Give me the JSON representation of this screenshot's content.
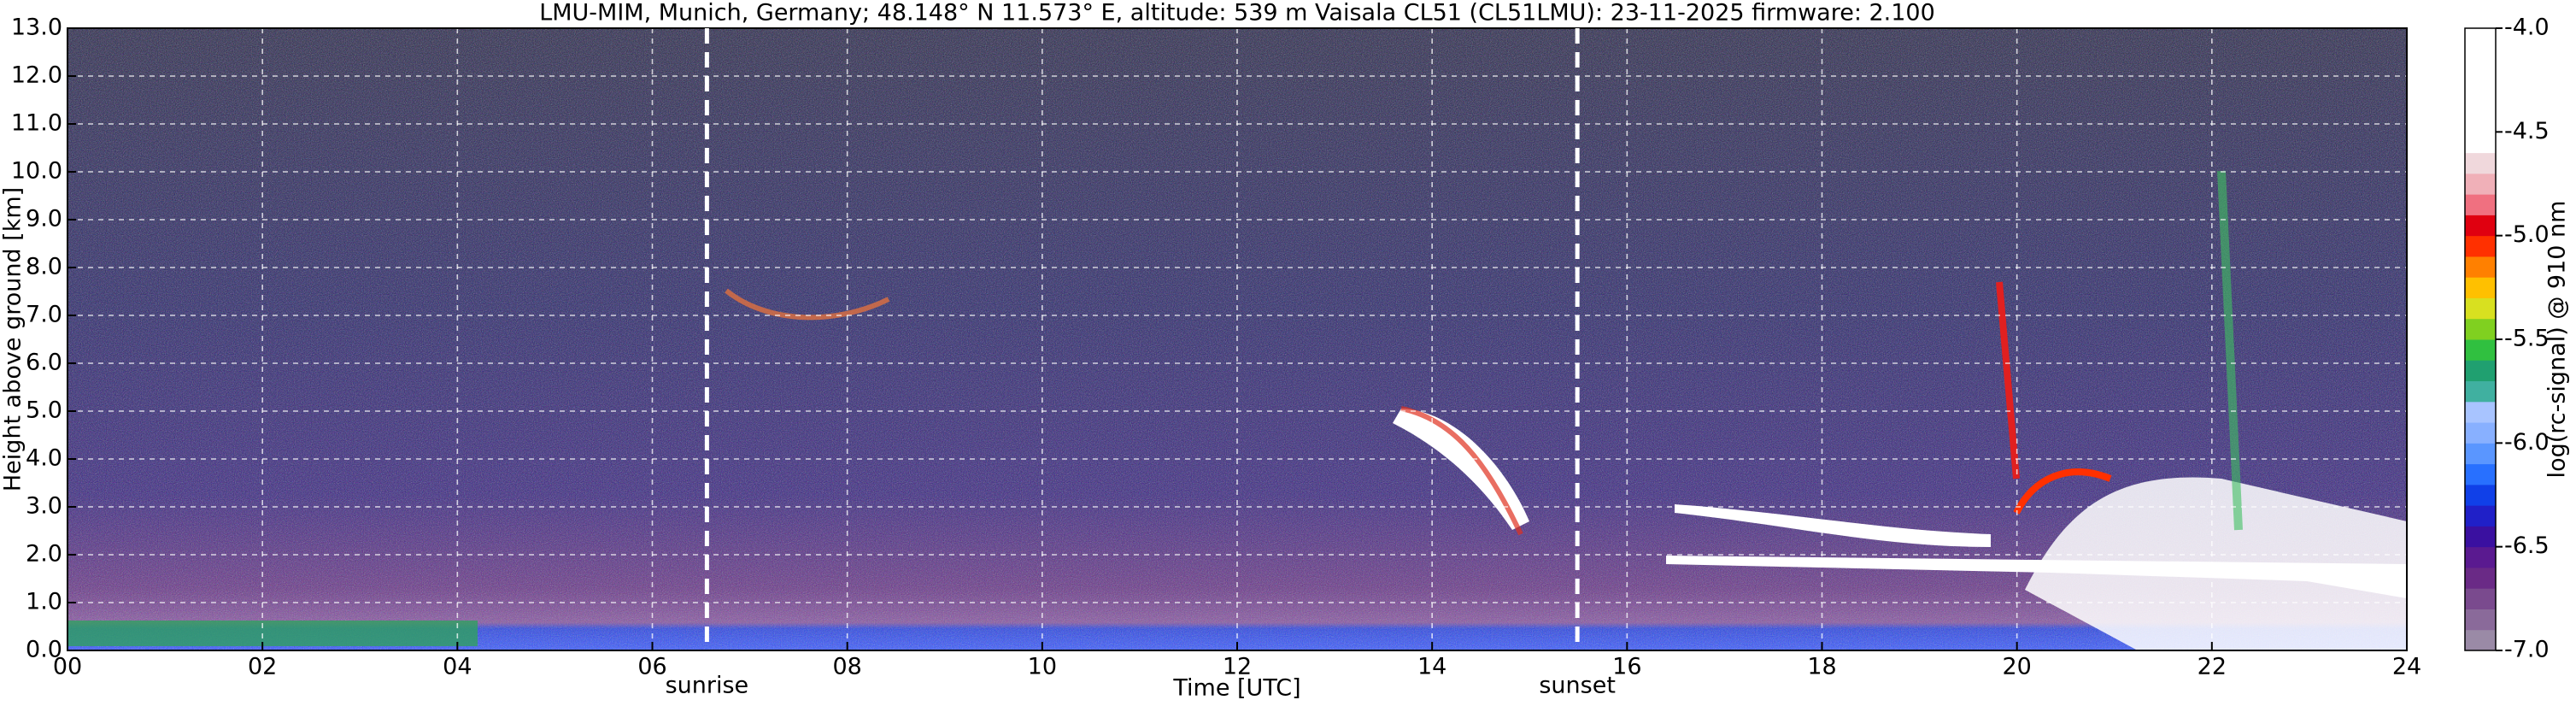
{
  "chart_data": {
    "type": "heatmap",
    "title": "LMU-MIM, Munich, Germany; 48.148° N 11.573° E, altitude: 539 m    Vaisala CL51 (CL51LMU): 23-11-2025    firmware: 2.100",
    "x_label": "Time [UTC]",
    "y_label": "Height above ground [km]",
    "xlim": [
      0,
      24
    ],
    "xticks": [
      {
        "value": 0,
        "label": "00"
      },
      {
        "value": 2,
        "label": "02"
      },
      {
        "value": 4,
        "label": "04"
      },
      {
        "value": 6,
        "label": "06"
      },
      {
        "value": 8,
        "label": "08"
      },
      {
        "value": 10,
        "label": "10"
      },
      {
        "value": 12,
        "label": "12"
      },
      {
        "value": 14,
        "label": "14"
      },
      {
        "value": 16,
        "label": "16"
      },
      {
        "value": 18,
        "label": "18"
      },
      {
        "value": 20,
        "label": "20"
      },
      {
        "value": 22,
        "label": "22"
      },
      {
        "value": 24,
        "label": "24"
      }
    ],
    "ylim": [
      0,
      13
    ],
    "yticks": [
      {
        "value": 0,
        "label": "0.0"
      },
      {
        "value": 1,
        "label": "1.0"
      },
      {
        "value": 2,
        "label": "2.0"
      },
      {
        "value": 3,
        "label": "3.0"
      },
      {
        "value": 4,
        "label": "4.0"
      },
      {
        "value": 5,
        "label": "5.0"
      },
      {
        "value": 6,
        "label": "6.0"
      },
      {
        "value": 7,
        "label": "7.0"
      },
      {
        "value": 8,
        "label": "8.0"
      },
      {
        "value": 9,
        "label": "9.0"
      },
      {
        "value": 10,
        "label": "10.0"
      },
      {
        "value": 11,
        "label": "11.0"
      },
      {
        "value": 12,
        "label": "12.0"
      },
      {
        "value": 13,
        "label": "13.0"
      }
    ],
    "grid": true,
    "vlines": [
      {
        "x": 6.56,
        "label": "sunrise"
      },
      {
        "x": 15.49,
        "label": "sunset"
      }
    ],
    "colorbar": {
      "label": "log(rc-signal) @ 910 nm",
      "lim": [
        -7,
        -4
      ],
      "ticks": [
        {
          "value": -4,
          "label": "-4.0"
        },
        {
          "value": -4.5,
          "label": "-4.5"
        },
        {
          "value": -5,
          "label": "-5.0"
        },
        {
          "value": -5.5,
          "label": "-5.5"
        },
        {
          "value": -6,
          "label": "-6.0"
        },
        {
          "value": -6.5,
          "label": "-6.5"
        },
        {
          "value": -7,
          "label": "-7.0"
        }
      ],
      "colors": [
        "#9a8aa6",
        "#8a6a9a",
        "#7a4a8e",
        "#6a2a86",
        "#5a1a90",
        "#3a10a0",
        "#2020c8",
        "#1040e8",
        "#2870ff",
        "#5a96ff",
        "#88b0ff",
        "#a8c4ff",
        "#40b0a0",
        "#20a070",
        "#30c040",
        "#80d020",
        "#d8e020",
        "#ffc000",
        "#ff8000",
        "#ff3000",
        "#e00010",
        "#f07080",
        "#f0b0b8",
        "#f0d8dc",
        "#ffffff",
        "#ffffff",
        "#ffffff",
        "#ffffff",
        "#ffffff",
        "#ffffff"
      ]
    }
  }
}
